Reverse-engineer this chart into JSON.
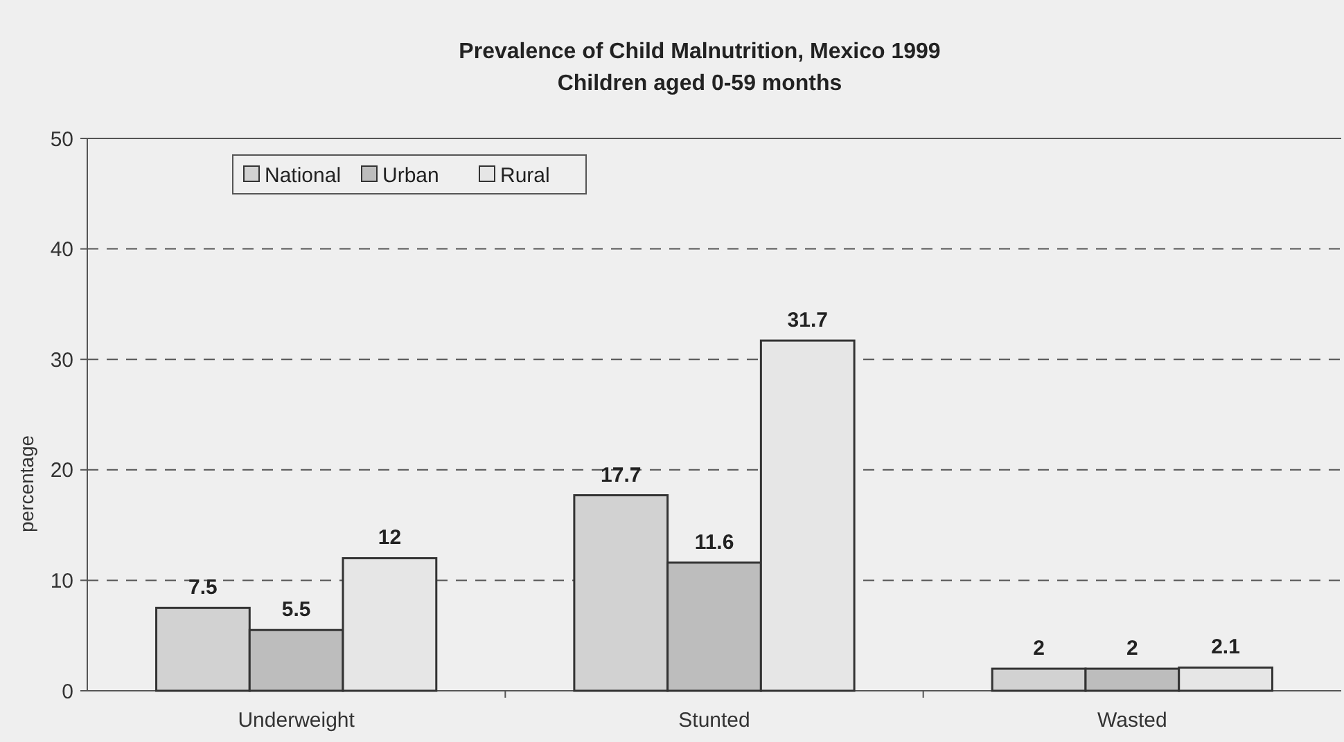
{
  "chart_data": {
    "type": "bar",
    "title": "Prevalence of Child Malnutrition,  Mexico 1999",
    "subtitle": "Children aged 0-59 months",
    "ylabel": "percentage",
    "categories": [
      "Underweight",
      "Stunted",
      "Wasted"
    ],
    "series": [
      {
        "name": "National",
        "color": "#d2d2d2",
        "values": [
          7.5,
          17.7,
          2
        ]
      },
      {
        "name": "Urban",
        "color": "#bdbdbd",
        "values": [
          5.5,
          11.6,
          2
        ]
      },
      {
        "name": "Rural",
        "color": "#e6e6e6",
        "values": [
          12,
          31.7,
          2.1
        ]
      }
    ],
    "ylim": [
      0,
      50
    ],
    "yticks": [
      0,
      10,
      20,
      30,
      40,
      50
    ],
    "grid": "y",
    "legend": "top left",
    "data_labels": true
  }
}
